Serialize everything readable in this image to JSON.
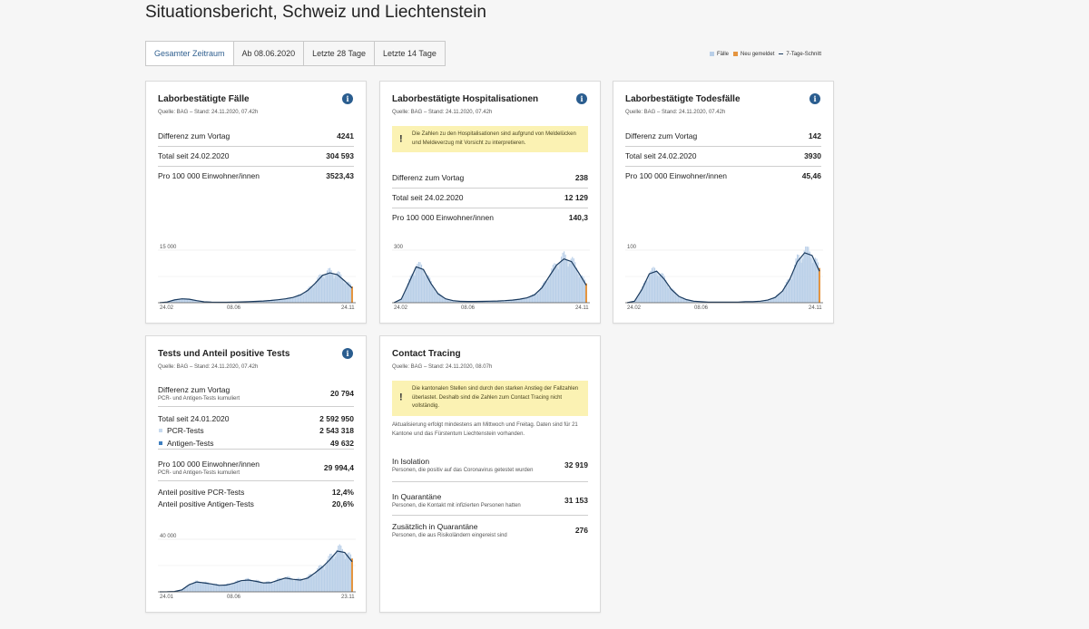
{
  "page": {
    "title": "Situationsbericht, Schweiz und Liechtenstein"
  },
  "toolbar": {
    "buttons": [
      {
        "label": "Gesamter Zeitraum",
        "active": true
      },
      {
        "label": "Ab 08.06.2020",
        "active": false
      },
      {
        "label": "Letzte 28 Tage",
        "active": false
      },
      {
        "label": "Letzte 14 Tage",
        "active": false
      }
    ]
  },
  "legend": {
    "cases": "Fälle",
    "new": "Neu gemeldet",
    "avg": "7-Tage-Schnitt",
    "colors": {
      "bars": "#b9cfe8",
      "new": "#e59540",
      "line": "#1a3a5e"
    }
  },
  "cards": {
    "cases": {
      "title": "Laborbestätigte Fälle",
      "source": "Quelle: BAG – Stand: 24.11.2020, 07.42h",
      "rows": [
        {
          "label": "Differenz zum Vortag",
          "value": "4241"
        },
        {
          "label": "Total seit 24.02.2020",
          "value": "304 593"
        },
        {
          "label": "Pro 100 000 Einwohner/innen",
          "value": "3523,43"
        }
      ]
    },
    "hosp": {
      "title": "Laborbestätigte Hospitalisationen",
      "source": "Quelle: BAG – Stand: 24.11.2020, 07.42h",
      "warning": "Die Zahlen zu den Hospitalisationen sind aufgrund von Meldelücken und Meldeverzug mit Vorsicht zu interpretieren.",
      "rows": [
        {
          "label": "Differenz zum Vortag",
          "value": "238"
        },
        {
          "label": "Total seit 24.02.2020",
          "value": "12 129"
        },
        {
          "label": "Pro 100 000 Einwohner/innen",
          "value": "140,3"
        }
      ]
    },
    "deaths": {
      "title": "Laborbestätigte Todesfälle",
      "source": "Quelle: BAG – Stand: 24.11.2020, 07.42h",
      "rows": [
        {
          "label": "Differenz zum Vortag",
          "value": "142"
        },
        {
          "label": "Total seit 24.02.2020",
          "value": "3930"
        },
        {
          "label": "Pro 100 000 Einwohner/innen",
          "value": "45,46"
        }
      ]
    },
    "tests": {
      "title": "Tests und Anteil positive Tests",
      "source": "Quelle: BAG – Stand: 24.11.2020, 07.42h",
      "diff": {
        "label": "Differenz zum Vortag",
        "sub": "PCR- und Antigen-Tests kumuliert",
        "value": "20 794"
      },
      "total": {
        "label": "Total seit 24.01.2020",
        "value": "2 592 950"
      },
      "pcr": {
        "label": "PCR-Tests",
        "value": "2 543 318",
        "color": "#c7d9ee"
      },
      "antigen": {
        "label": "Antigen-Tests",
        "value": "49 632",
        "color": "#3f7fbf"
      },
      "per100k": {
        "label": "Pro 100 000 Einwohner/innen",
        "sub": "PCR- und Antigen-Tests kumuliert",
        "value": "29 994,4"
      },
      "pos_pcr": {
        "label": "Anteil positive PCR-Tests",
        "value": "12,4%"
      },
      "pos_antigen": {
        "label": "Anteil positive Antigen-Tests",
        "value": "20,6%"
      }
    },
    "tracing": {
      "title": "Contact Tracing",
      "source": "Quelle: BAG – Stand: 24.11.2020, 08.07h",
      "warning": "Die kantonalen Stellen sind durch den starken Anstieg der Fallzahlen überlastet. Deshalb sind die Zahlen zum Contact Tracing nicht vollständig.",
      "note": "Aktualisierung erfolgt mindestens am Mittwoch und Freitag. Daten sind für 21 Kantone und das Fürstentum Liechtenstein vorhanden.",
      "isolation": {
        "label": "In Isolation",
        "sub": "Personen, die positiv auf das Coronavirus getestet wurden",
        "value": "32 919"
      },
      "quarantine": {
        "label": "In Quarantäne",
        "sub": "Personen, die Kontakt mit infizierten Personen hatten",
        "value": "31 153"
      },
      "extra": {
        "label": "Zusätzlich in Quarantäne",
        "sub": "Personen, die aus Risikoländern eingereist sind",
        "value": "276"
      }
    }
  },
  "chart_data": [
    {
      "id": "cases",
      "type": "area",
      "ymax_label": "15 000",
      "ymax": 15000,
      "x_labels": [
        "24.02",
        "08.06",
        "24.11"
      ],
      "values": [
        0,
        200,
        800,
        1100,
        1000,
        600,
        250,
        150,
        120,
        140,
        180,
        230,
        300,
        380,
        500,
        650,
        850,
        1100,
        1500,
        2200,
        3500,
        5500,
        7800,
        8500,
        8000,
        6200,
        4200
      ]
    },
    {
      "id": "hosp",
      "type": "area",
      "ymax_label": "300",
      "ymax": 300,
      "x_labels": [
        "24.02",
        "08.06",
        "24.11"
      ],
      "values": [
        0,
        20,
        110,
        205,
        190,
        110,
        50,
        22,
        12,
        8,
        7,
        7,
        8,
        9,
        10,
        12,
        15,
        20,
        28,
        45,
        85,
        150,
        215,
        250,
        235,
        170,
        100
      ]
    },
    {
      "id": "deaths",
      "type": "area",
      "ymax_label": "100",
      "ymax": 100,
      "x_labels": [
        "24.02",
        "08.06",
        "24.11"
      ],
      "values": [
        0,
        3,
        25,
        55,
        60,
        45,
        25,
        12,
        6,
        3,
        2,
        1,
        1,
        1,
        1,
        1,
        2,
        2,
        3,
        5,
        10,
        22,
        45,
        78,
        95,
        90,
        60
      ]
    },
    {
      "id": "tests",
      "type": "area",
      "ymax_label": "40 000",
      "ymax": 40000,
      "x_labels": [
        "24.01",
        "08.06",
        "23.11"
      ],
      "values": [
        0,
        100,
        300,
        1500,
        5500,
        7500,
        6800,
        6000,
        5000,
        5200,
        6500,
        8500,
        9000,
        8000,
        6800,
        7000,
        8800,
        10500,
        9500,
        9000,
        10500,
        14500,
        19000,
        24500,
        31000,
        30000,
        23000
      ]
    }
  ]
}
